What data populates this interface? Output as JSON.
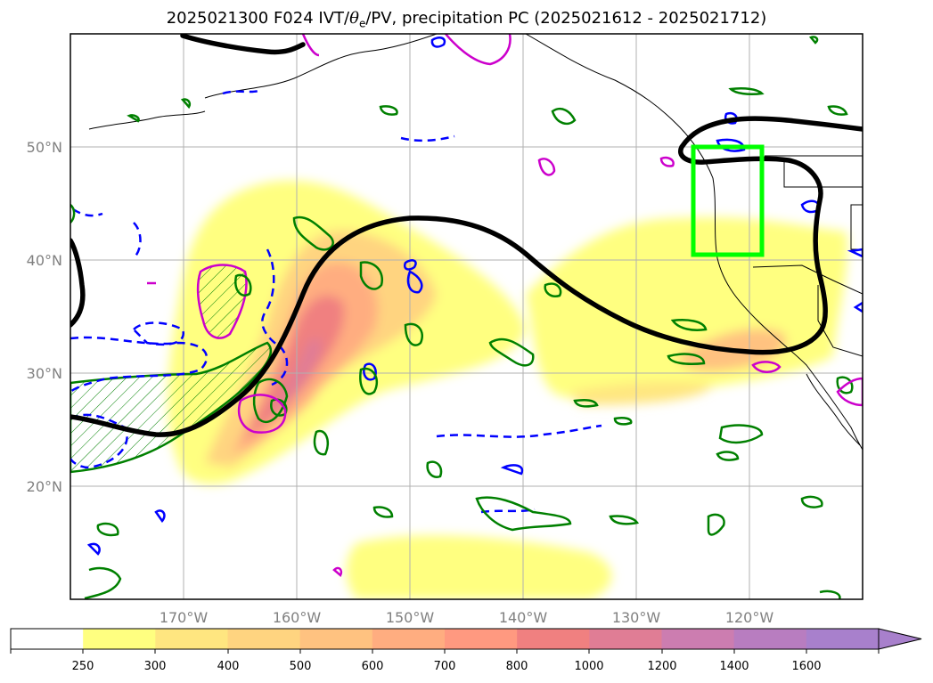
{
  "title": {
    "run": "2025021300",
    "forecast": "F024",
    "fields_prefix": "IVT/",
    "theta": "θ",
    "theta_sub": "e",
    "fields_suffix": "/PV, precipitation PC",
    "period": "(2025021612 - 2025021712)"
  },
  "map": {
    "lat_labels": [
      "50°N",
      "40°N",
      "30°N",
      "20°N"
    ],
    "lon_labels": [
      "170°W",
      "160°W",
      "150°W",
      "140°W",
      "130°W",
      "120°W"
    ],
    "lat_values": [
      50,
      40,
      30,
      20
    ],
    "lon_values": [
      -170,
      -160,
      -150,
      -140,
      -130,
      -120
    ],
    "extent": {
      "lon": [
        -180,
        -110
      ],
      "lat": [
        10,
        60
      ]
    },
    "grid": true,
    "highlight_box": {
      "lon": [
        -125,
        -119
      ],
      "lat": [
        40.5,
        50
      ],
      "color": "#00ff00"
    },
    "contour_colors": {
      "theta_e": "#000000",
      "pv_positive": "#008000",
      "pv_negative": "#0000ff",
      "precip": "#cc00cc"
    }
  },
  "colorbar": {
    "tick_labels": [
      "250",
      "300",
      "400",
      "500",
      "600",
      "700",
      "800",
      "1000",
      "1200",
      "1400",
      "1600"
    ],
    "levels": [
      250,
      300,
      400,
      500,
      600,
      700,
      800,
      1000,
      1200,
      1400,
      1600
    ],
    "colors": [
      "#ffffff",
      "#ffff80",
      "#ffe680",
      "#ffd480",
      "#ffc280",
      "#ffad80",
      "#ff9980",
      "#f08080",
      "#e07d95",
      "#cc7db0",
      "#b87dc0",
      "#a880cc"
    ],
    "extend": "max"
  }
}
